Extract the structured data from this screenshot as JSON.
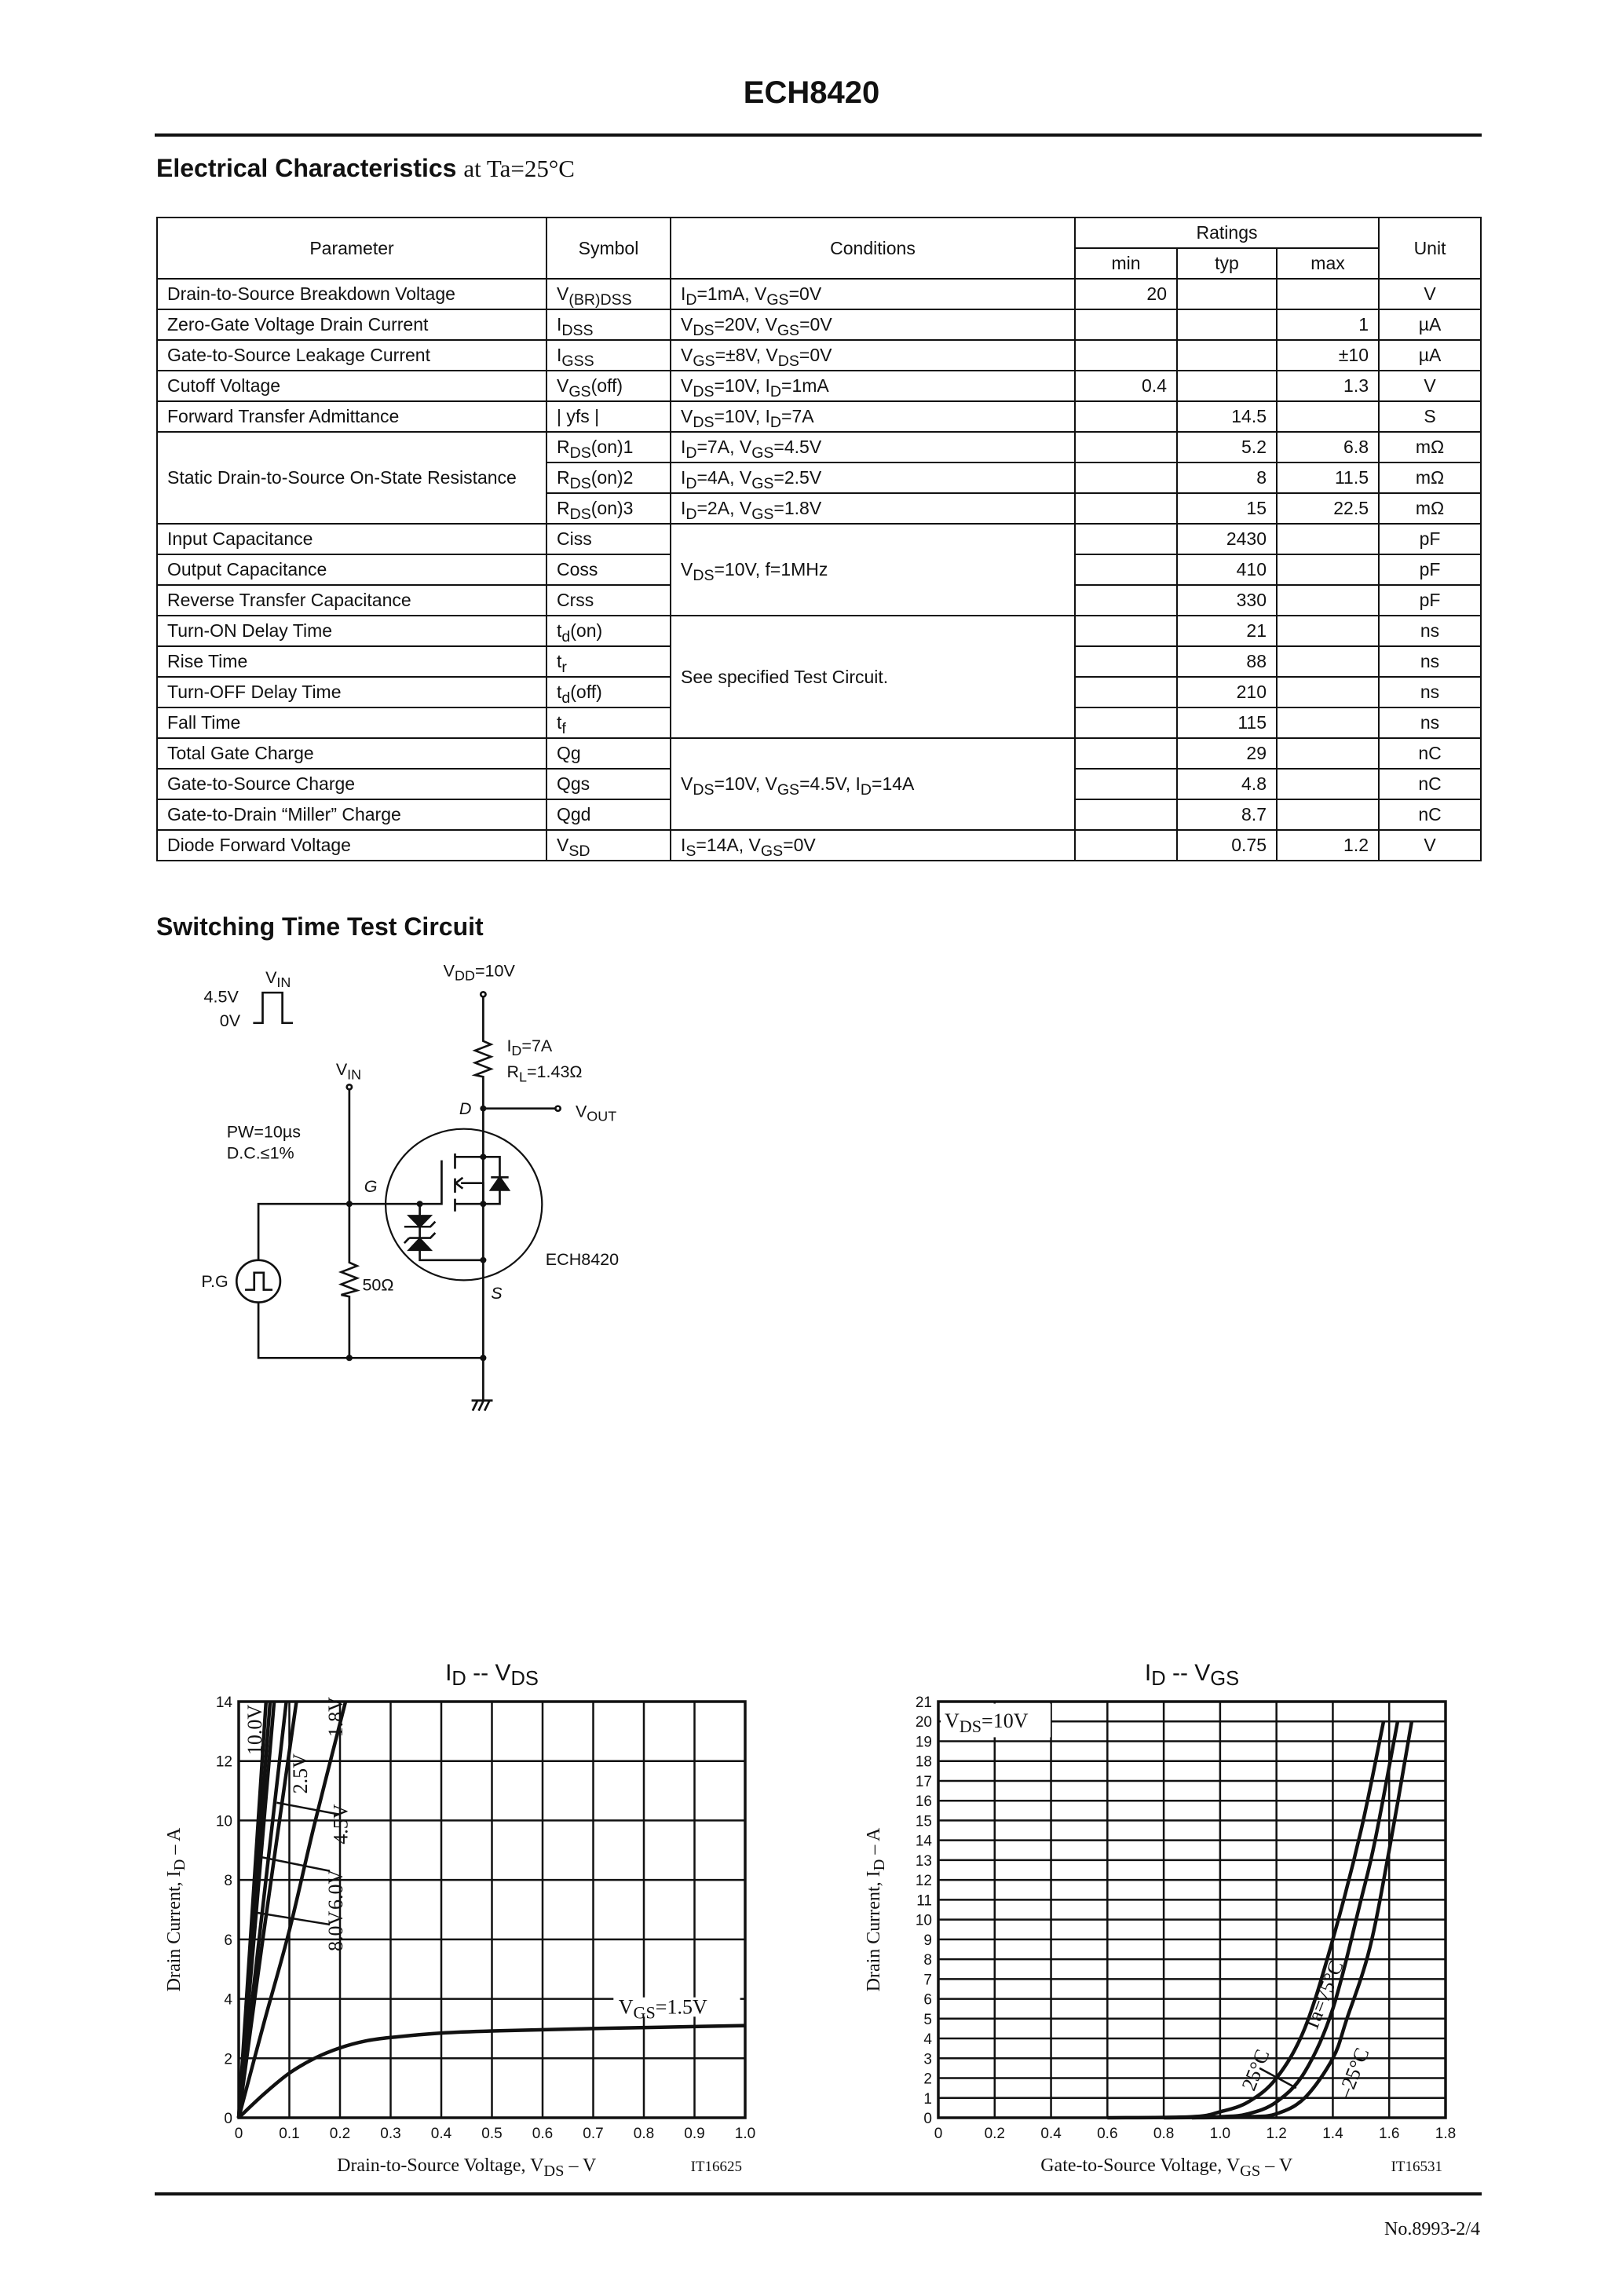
{
  "header": {
    "title": "ECH8420"
  },
  "electrical": {
    "heading": "Electrical Characteristics",
    "heading_suffix": "at Ta=25°C",
    "columns": {
      "parameter": "Parameter",
      "symbol": "Symbol",
      "conditions": "Conditions",
      "ratings": "Ratings",
      "min": "min",
      "typ": "typ",
      "max": "max",
      "unit": "Unit"
    },
    "rows": [
      {
        "param": "Drain-to-Source Breakdown Voltage",
        "symbol": [
          "V",
          "(BR)DSS"
        ],
        "cond": [
          "I",
          "D",
          "=1mA, V",
          "GS",
          "=0V"
        ],
        "min": "20",
        "typ": "",
        "max": "",
        "unit": "V"
      },
      {
        "param": "Zero-Gate Voltage Drain Current",
        "symbol": [
          "I",
          "DSS"
        ],
        "cond": [
          "V",
          "DS",
          "=20V, V",
          "GS",
          "=0V"
        ],
        "min": "",
        "typ": "",
        "max": "1",
        "unit": "µA"
      },
      {
        "param": "Gate-to-Source Leakage Current",
        "symbol": [
          "I",
          "GSS"
        ],
        "cond": [
          "V",
          "GS",
          "=±8V, V",
          "DS",
          "=0V"
        ],
        "min": "",
        "typ": "",
        "max": "±10",
        "unit": "µA"
      },
      {
        "param": "Cutoff Voltage",
        "symbol": [
          "V",
          "GS",
          "(off)"
        ],
        "cond": [
          "V",
          "DS",
          "=10V, I",
          "D",
          "=1mA"
        ],
        "min": "0.4",
        "typ": "",
        "max": "1.3",
        "unit": "V"
      },
      {
        "param": "Forward Transfer Admittance",
        "symbol": [
          "| yfs |"
        ],
        "cond": [
          "V",
          "DS",
          "=10V, I",
          "D",
          "=7A"
        ],
        "min": "",
        "typ": "14.5",
        "max": "",
        "unit": "S"
      },
      {
        "param": "Static Drain-to-Source On-State Resistance",
        "symbol": [
          "R",
          "DS",
          "(on)1"
        ],
        "cond": [
          "I",
          "D",
          "=7A, V",
          "GS",
          "=4.5V"
        ],
        "min": "",
        "typ": "5.2",
        "max": "6.8",
        "unit": "mΩ"
      },
      {
        "param": "",
        "symbol": [
          "R",
          "DS",
          "(on)2"
        ],
        "cond": [
          "I",
          "D",
          "=4A, V",
          "GS",
          "=2.5V"
        ],
        "min": "",
        "typ": "8",
        "max": "11.5",
        "unit": "mΩ"
      },
      {
        "param": "",
        "symbol": [
          "R",
          "DS",
          "(on)3"
        ],
        "cond": [
          "I",
          "D",
          "=2A, V",
          "GS",
          "=1.8V"
        ],
        "min": "",
        "typ": "15",
        "max": "22.5",
        "unit": "mΩ"
      },
      {
        "param": "Input Capacitance",
        "symbol": [
          "Ciss"
        ],
        "cond": [
          "V",
          "DS",
          "=10V, f=1MHz"
        ],
        "min": "",
        "typ": "2430",
        "max": "",
        "unit": "pF"
      },
      {
        "param": "Output Capacitance",
        "symbol": [
          "Coss"
        ],
        "cond": [],
        "min": "",
        "typ": "410",
        "max": "",
        "unit": "pF"
      },
      {
        "param": "Reverse Transfer Capacitance",
        "symbol": [
          "Crss"
        ],
        "cond": [],
        "min": "",
        "typ": "330",
        "max": "",
        "unit": "pF"
      },
      {
        "param": "Turn-ON Delay Time",
        "symbol": [
          "t",
          "d",
          "(on)"
        ],
        "cond": [
          "See specified Test Circuit."
        ],
        "min": "",
        "typ": "21",
        "max": "",
        "unit": "ns"
      },
      {
        "param": "Rise Time",
        "symbol": [
          "t",
          "r"
        ],
        "cond": [],
        "min": "",
        "typ": "88",
        "max": "",
        "unit": "ns"
      },
      {
        "param": "Turn-OFF Delay Time",
        "symbol": [
          "t",
          "d",
          "(off)"
        ],
        "cond": [],
        "min": "",
        "typ": "210",
        "max": "",
        "unit": "ns"
      },
      {
        "param": "Fall Time",
        "symbol": [
          "t",
          "f"
        ],
        "cond": [],
        "min": "",
        "typ": "115",
        "max": "",
        "unit": "ns"
      },
      {
        "param": "Total Gate Charge",
        "symbol": [
          "Qg"
        ],
        "cond": [
          "V",
          "DS",
          "=10V, V",
          "GS",
          "=4.5V, I",
          "D",
          "=14A"
        ],
        "min": "",
        "typ": "29",
        "max": "",
        "unit": "nC"
      },
      {
        "param": "Gate-to-Source Charge",
        "symbol": [
          "Qgs"
        ],
        "cond": [],
        "min": "",
        "typ": "4.8",
        "max": "",
        "unit": "nC"
      },
      {
        "param": "Gate-to-Drain “Miller” Charge",
        "symbol": [
          "Qgd"
        ],
        "cond": [],
        "min": "",
        "typ": "8.7",
        "max": "",
        "unit": "nC"
      },
      {
        "param": "Diode Forward Voltage",
        "symbol": [
          "V",
          "SD"
        ],
        "cond": [
          "I",
          "S",
          "=14A, V",
          "GS",
          "=0V"
        ],
        "min": "",
        "typ": "0.75",
        "max": "1.2",
        "unit": "V"
      }
    ]
  },
  "circuit": {
    "heading": "Switching Time Test Circuit",
    "vin_v": "V",
    "vin_sub": "IN",
    "high": "4.5V",
    "low": "0V",
    "vdd_v": "V",
    "vdd_sub": "DD",
    "vdd_val": "=10V",
    "id_i": "I",
    "id_sub": "D",
    "id_val": "=7A",
    "rl_r": "R",
    "rl_sub": "L",
    "rl_val": "=1.43Ω",
    "vout_v": "V",
    "vout_sub": "OUT",
    "drain": "D",
    "gate": "G",
    "source": "S",
    "pw": "PW=10µs",
    "dc": "D.C.≤1%",
    "pg": "P.G",
    "r50": "50Ω",
    "device": "ECH8420"
  },
  "chart_data": [
    {
      "type": "line",
      "title_main": "I",
      "title_sub": "D",
      "title_sep": " -- ",
      "title_main2": "V",
      "title_sub2": "DS",
      "xlabel": "Drain-to-Source Voltage, V",
      "xlabel_sub": "DS",
      "xlabel_unit": " – V",
      "ylabel": "Drain Current, I",
      "ylabel_sub": "D",
      "ylabel_unit": " – A",
      "code": "IT16625",
      "xlim": [
        0,
        1.0
      ],
      "ylim": [
        0,
        14
      ],
      "xticks": [
        "0",
        "0.1",
        "0.2",
        "0.3",
        "0.4",
        "0.5",
        "0.6",
        "0.7",
        "0.8",
        "0.9",
        "1.0"
      ],
      "yticks": [
        "0",
        "2",
        "4",
        "6",
        "8",
        "10",
        "12",
        "14"
      ],
      "grid": true,
      "series": [
        {
          "name": "10.0V",
          "x": [
            0,
            0.054
          ],
          "y": [
            0,
            14
          ]
        },
        {
          "name": "8.0V",
          "x": [
            0,
            0.062
          ],
          "y": [
            0,
            14
          ]
        },
        {
          "name": "6.0V",
          "x": [
            0,
            0.07
          ],
          "y": [
            0,
            14
          ]
        },
        {
          "name": "4.5V",
          "x": [
            0,
            0.094
          ],
          "y": [
            0,
            14
          ]
        },
        {
          "name": "2.5V",
          "x": [
            0,
            0.05,
            0.114
          ],
          "y": [
            0,
            6.3,
            14
          ]
        },
        {
          "name": "1.8V",
          "x": [
            0,
            0.05,
            0.1,
            0.15,
            0.211
          ],
          "y": [
            0,
            3.2,
            6.3,
            9.9,
            14
          ]
        },
        {
          "name": "VGS=1.5V",
          "label_main": "V",
          "label_sub": "GS",
          "label_val": "=1.5V",
          "x": [
            0,
            0.05,
            0.1,
            0.15,
            0.2,
            0.25,
            0.3,
            0.4,
            0.5,
            0.7,
            1.0
          ],
          "y": [
            0,
            0.8,
            1.5,
            2.0,
            2.35,
            2.58,
            2.7,
            2.85,
            2.92,
            3.0,
            3.1
          ]
        }
      ]
    },
    {
      "type": "line",
      "title_main": "I",
      "title_sub": "D",
      "title_sep": " -- ",
      "title_main2": "V",
      "title_sub2": "GS",
      "xlabel": "Gate-to-Source Voltage, V",
      "xlabel_sub": "GS",
      "xlabel_unit": " – V",
      "ylabel": "Drain Current, I",
      "ylabel_sub": "D",
      "ylabel_unit": " – A",
      "code": "IT16531",
      "condition_main": "V",
      "condition_sub": "DS",
      "condition_val": "=10V",
      "xlim": [
        0,
        1.8
      ],
      "ylim": [
        0,
        21
      ],
      "xticks": [
        "0",
        "0.2",
        "0.4",
        "0.6",
        "0.8",
        "1.0",
        "1.2",
        "1.4",
        "1.6",
        "1.8"
      ],
      "yticks": [
        "0",
        "1",
        "2",
        "3",
        "4",
        "5",
        "6",
        "7",
        "8",
        "9",
        "10",
        "11",
        "12",
        "13",
        "14",
        "15",
        "16",
        "17",
        "18",
        "19",
        "20",
        "21"
      ],
      "grid": true,
      "series": [
        {
          "name": "Ta=75°C",
          "x": [
            0.6,
            0.9,
            1.0,
            1.1,
            1.2,
            1.3,
            1.4,
            1.5,
            1.58
          ],
          "y": [
            0,
            0.05,
            0.3,
            0.8,
            2.0,
            4.5,
            9.0,
            14.5,
            20
          ]
        },
        {
          "name": "25°C",
          "x": [
            0.8,
            1.0,
            1.1,
            1.2,
            1.3,
            1.4,
            1.5,
            1.55,
            1.63
          ],
          "y": [
            0,
            0.05,
            0.2,
            0.8,
            2.3,
            5.5,
            11.0,
            14.0,
            20
          ]
        },
        {
          "name": "–25°C",
          "x": [
            0.9,
            1.1,
            1.2,
            1.3,
            1.4,
            1.45,
            1.53,
            1.6,
            1.68
          ],
          "y": [
            0,
            0.05,
            0.2,
            1.0,
            3.0,
            5.0,
            8.5,
            13.5,
            20
          ]
        }
      ]
    }
  ],
  "footer": {
    "page": "No.8993-2/4"
  }
}
